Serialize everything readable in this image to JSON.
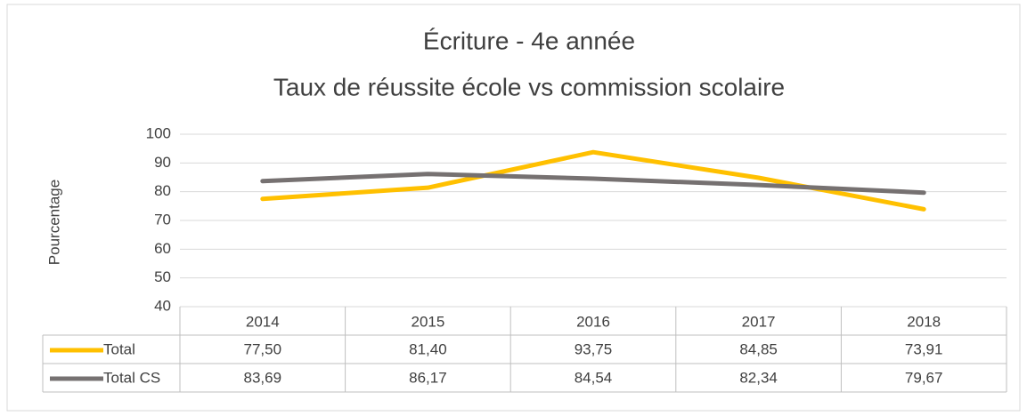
{
  "chart_data": {
    "type": "line",
    "title": "Écriture - 4e année",
    "subtitle": "Taux de réussite école vs commission scolaire",
    "y_label": "Pourcentage",
    "categories": [
      "2014",
      "2015",
      "2016",
      "2017",
      "2018"
    ],
    "series": [
      {
        "name": "Total",
        "color": "#ffc000",
        "values": [
          77.5,
          81.4,
          93.75,
          84.85,
          73.91
        ],
        "value_labels": [
          "77,50",
          "81,40",
          "93,75",
          "84,85",
          "73,91"
        ]
      },
      {
        "name": "Total CS",
        "color": "#767171",
        "values": [
          83.69,
          86.17,
          84.54,
          82.34,
          79.67
        ],
        "value_labels": [
          "83,69",
          "86,17",
          "84,54",
          "82,34",
          "79,67"
        ]
      }
    ],
    "ylim": [
      40,
      100
    ],
    "yticks": [
      40,
      50,
      60,
      70,
      80,
      90,
      100
    ],
    "grid": true,
    "data_table": true
  }
}
